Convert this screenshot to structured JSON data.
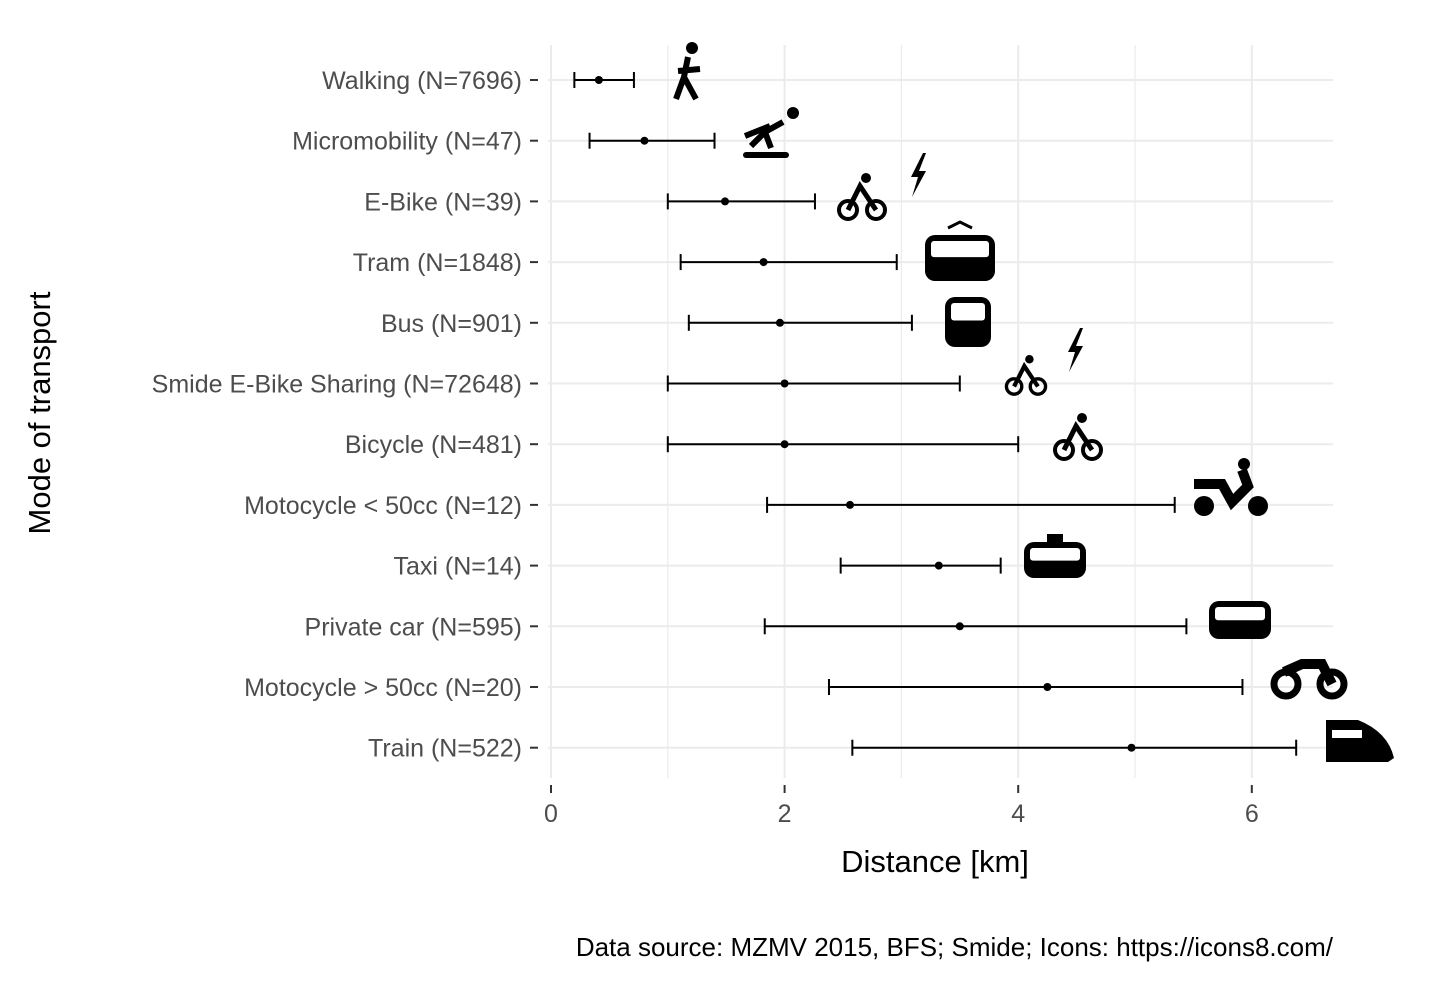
{
  "chart_data": {
    "type": "errorbar",
    "xlabel": "Distance [km]",
    "ylabel": "Mode of transport",
    "caption": "Data source: MZMV 2015, BFS; Smide; Icons: https://icons8.com/",
    "xlim": [
      0,
      6.7
    ],
    "xticks": [
      0,
      2,
      4,
      6
    ],
    "grid": true,
    "categories": [
      "Walking (N=7696)",
      "Micromobility (N=47)",
      "E-Bike (N=39)",
      "Tram (N=1848)",
      "Bus (N=901)",
      "Smide E-Bike Sharing (N=72648)",
      "Bicycle (N=481)",
      "Motocycle < 50cc (N=12)",
      "Taxi (N=14)",
      "Private car (N=595)",
      "Motocycle > 50cc (N=20)",
      "Train (N=522)"
    ],
    "center": [
      0.41,
      0.8,
      1.49,
      1.82,
      1.96,
      2.0,
      2.0,
      2.56,
      3.32,
      3.5,
      4.25,
      4.97
    ],
    "lower": [
      0.2,
      0.33,
      1.0,
      1.11,
      1.18,
      1.0,
      1.0,
      1.85,
      2.48,
      1.83,
      2.38,
      2.58
    ],
    "upper": [
      0.71,
      1.4,
      2.26,
      2.96,
      3.09,
      3.5,
      4.0,
      5.34,
      3.85,
      5.44,
      5.92,
      6.38
    ],
    "icons": [
      "walking-icon",
      "skateboard-icon",
      "ebike-icon",
      "tram-icon",
      "bus-icon",
      "ebike-icon",
      "bicycle-icon",
      "scooter-icon",
      "taxi-icon",
      "car-icon",
      "motorcycle-icon",
      "train-icon"
    ],
    "colors": {
      "mark": "#000000",
      "grid": "#ebebeb",
      "tick_text": "#4d4d4d"
    }
  }
}
